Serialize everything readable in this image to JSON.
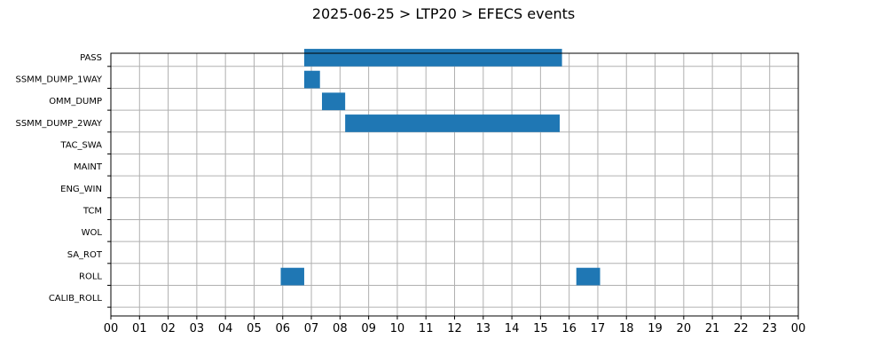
{
  "chart_data": {
    "type": "bar",
    "orientation": "horizontal-timeline",
    "title": "2025-06-25 > LTP20 > EFECS events",
    "xlabel": "",
    "ylabel": "",
    "grid": true,
    "xlim": [
      "00:00",
      "24:00"
    ],
    "x_tick_labels": [
      "00",
      "01",
      "02",
      "03",
      "04",
      "05",
      "06",
      "07",
      "08",
      "09",
      "10",
      "11",
      "12",
      "13",
      "14",
      "15",
      "16",
      "17",
      "18",
      "19",
      "20",
      "21",
      "22",
      "23",
      "00"
    ],
    "categories": [
      "PASS",
      "SSMM_DUMP_1WAY",
      "OMM_DUMP",
      "SSMM_DUMP_2WAY",
      "TAC_SWA",
      "MAINT",
      "ENG_WIN",
      "TCM",
      "WOL",
      "SA_ROT",
      "ROLL",
      "CALIB_ROLL"
    ],
    "events": [
      {
        "category": "PASS",
        "start_hour": 6.75,
        "end_hour": 15.75
      },
      {
        "category": "SSMM_DUMP_1WAY",
        "start_hour": 6.75,
        "end_hour": 7.3
      },
      {
        "category": "OMM_DUMP",
        "start_hour": 7.37,
        "end_hour": 8.18
      },
      {
        "category": "SSMM_DUMP_2WAY",
        "start_hour": 8.18,
        "end_hour": 15.67
      },
      {
        "category": "ROLL",
        "start_hour": 5.93,
        "end_hour": 6.75
      },
      {
        "category": "ROLL",
        "start_hour": 16.25,
        "end_hour": 17.08
      }
    ],
    "bar_color": "#1f77b4",
    "grid_color": "#b0b0b0"
  }
}
